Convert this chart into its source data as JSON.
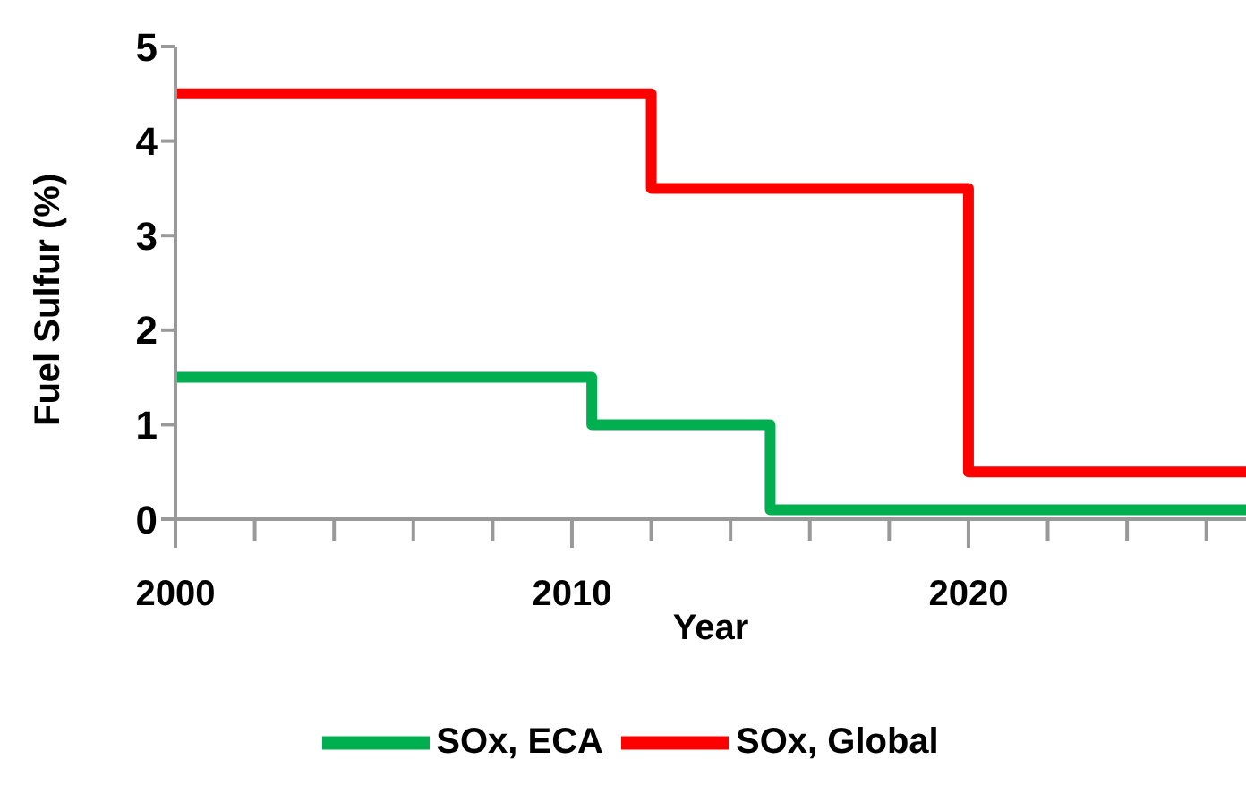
{
  "chart_data": {
    "type": "step",
    "xlabel": "Year",
    "ylabel": "Fuel Sulfur (%)",
    "series": [
      {
        "name": "SOx, Global",
        "color": "#ff0000",
        "x": [
          2000,
          2012,
          2020,
          2027
        ],
        "values": [
          4.5,
          3.5,
          0.5,
          0.5
        ]
      },
      {
        "name": "SOx, ECA",
        "color": "#00b050",
        "x": [
          2000,
          2010.5,
          2015,
          2027
        ],
        "values": [
          1.5,
          1,
          0.1,
          0.1
        ]
      }
    ],
    "xlim": [
      2000,
      2027
    ],
    "xticks": [
      2000,
      {
        "value": 2002,
        "label": null
      },
      {
        "value": 2004,
        "label": null
      },
      {
        "value": 2006,
        "label": null
      },
      {
        "value": 2008,
        "label": null
      },
      2010,
      {
        "value": 2012,
        "label": null
      },
      {
        "value": 2014,
        "label": null
      },
      {
        "value": 2016,
        "label": null
      },
      {
        "value": 2018,
        "label": null
      },
      2020,
      {
        "value": 2022,
        "label": null
      },
      {
        "value": 2024,
        "label": null
      },
      {
        "value": 2026,
        "label": null
      }
    ],
    "ylim": [
      0,
      5
    ],
    "yticks": [
      0,
      1,
      2,
      3,
      4,
      5
    ],
    "grid": false,
    "legend": "bottom",
    "marker": "none",
    "line_style": "solid"
  }
}
